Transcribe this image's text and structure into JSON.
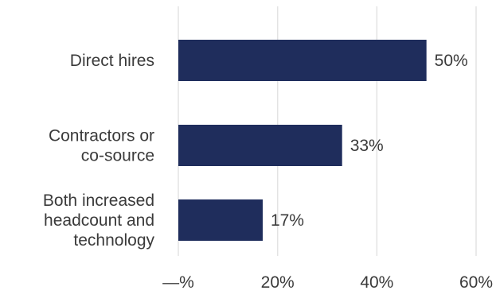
{
  "chart_data": {
    "type": "bar",
    "orientation": "horizontal",
    "categories": [
      [
        "Direct hires"
      ],
      [
        "Contractors or",
        "co-source"
      ],
      [
        "Both increased",
        "headcount and",
        "technology"
      ]
    ],
    "values": [
      50,
      33,
      17
    ],
    "data_labels": [
      "50%",
      "33%",
      "17%"
    ],
    "xlim": [
      0,
      60
    ],
    "x_ticks": [
      0,
      20,
      40,
      60
    ],
    "x_tick_labels": [
      "—%",
      "20%",
      "40%",
      "60%"
    ],
    "grid": "vertical",
    "bar_color": "#1f2d5c",
    "title": "",
    "xlabel": "",
    "ylabel": ""
  }
}
